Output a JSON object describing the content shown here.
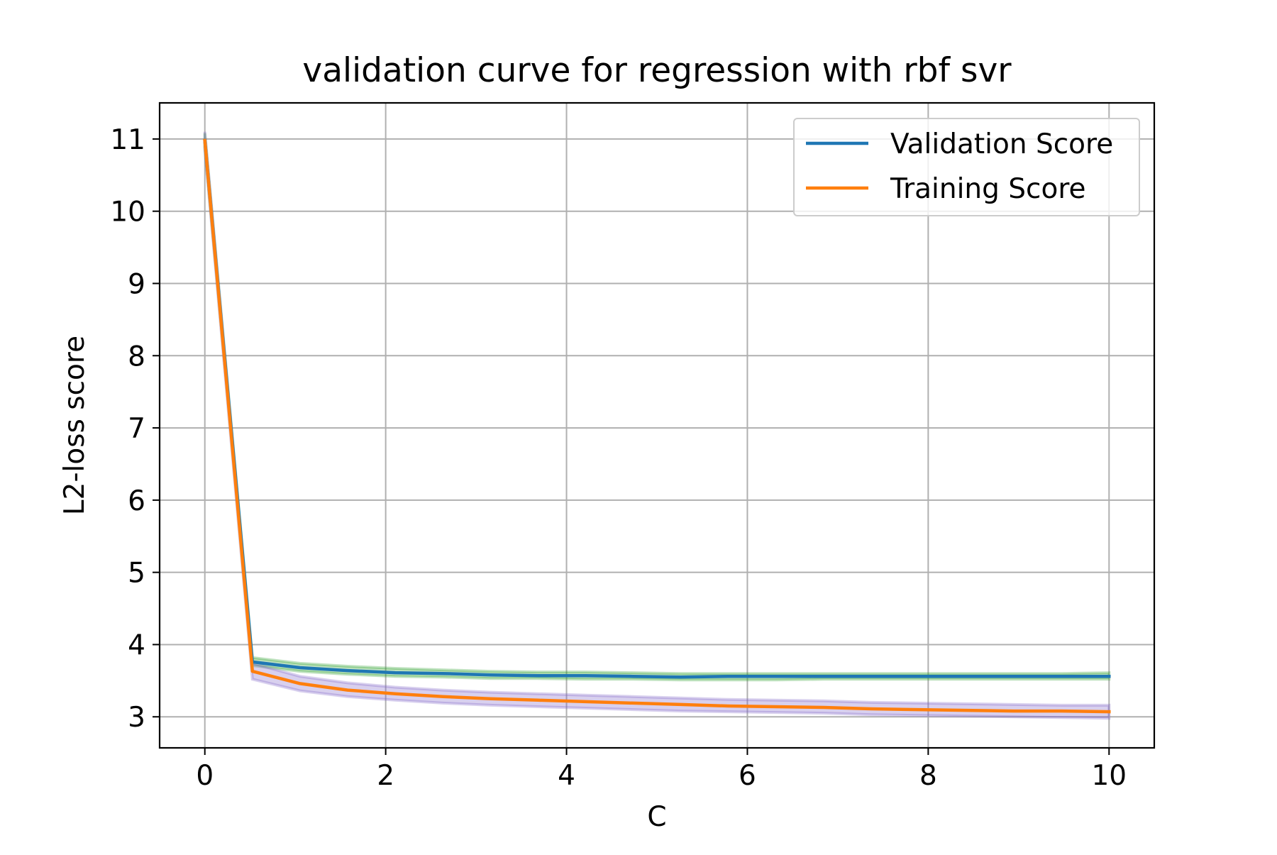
{
  "chart_data": {
    "type": "line",
    "title": "validation curve for regression with rbf svr",
    "xlabel": "C",
    "ylabel": "L2-loss score",
    "xlim": [
      -0.5,
      10.5
    ],
    "ylim": [
      2.57,
      11.5
    ],
    "xticks": [
      0,
      2,
      4,
      6,
      8,
      10
    ],
    "yticks": [
      3,
      4,
      5,
      6,
      7,
      8,
      9,
      10,
      11
    ],
    "grid": true,
    "legend_position": "upper right",
    "x": [
      0.0,
      0.526,
      1.053,
      1.579,
      2.105,
      2.632,
      3.158,
      3.684,
      4.211,
      4.737,
      5.263,
      5.789,
      6.316,
      6.842,
      7.368,
      7.895,
      8.421,
      8.947,
      9.474,
      10.0
    ],
    "series": [
      {
        "name": "Validation Score",
        "color": "#1f77b4",
        "band_color": "#2ca02c",
        "values": [
          10.98,
          3.76,
          3.68,
          3.64,
          3.61,
          3.6,
          3.58,
          3.57,
          3.57,
          3.56,
          3.55,
          3.56,
          3.56,
          3.56,
          3.56,
          3.56,
          3.56,
          3.56,
          3.56,
          3.56
        ],
        "band_lower": [
          10.88,
          3.71,
          3.63,
          3.59,
          3.56,
          3.55,
          3.53,
          3.53,
          3.52,
          3.52,
          3.51,
          3.51,
          3.51,
          3.52,
          3.52,
          3.52,
          3.52,
          3.52,
          3.52,
          3.52
        ],
        "band_upper": [
          11.08,
          3.82,
          3.74,
          3.7,
          3.67,
          3.65,
          3.63,
          3.62,
          3.62,
          3.61,
          3.6,
          3.6,
          3.6,
          3.6,
          3.6,
          3.6,
          3.6,
          3.6,
          3.6,
          3.61
        ]
      },
      {
        "name": "Training Score",
        "color": "#ff7f0e",
        "band_color": "#7f64c8",
        "values": [
          10.98,
          3.63,
          3.46,
          3.37,
          3.32,
          3.28,
          3.25,
          3.23,
          3.21,
          3.19,
          3.17,
          3.15,
          3.14,
          3.13,
          3.11,
          3.1,
          3.09,
          3.08,
          3.08,
          3.07
        ],
        "band_lower": [
          10.86,
          3.52,
          3.36,
          3.28,
          3.23,
          3.19,
          3.16,
          3.14,
          3.12,
          3.1,
          3.08,
          3.07,
          3.06,
          3.05,
          3.03,
          3.02,
          3.01,
          3.0,
          2.99,
          2.98
        ],
        "band_upper": [
          11.1,
          3.74,
          3.56,
          3.47,
          3.41,
          3.37,
          3.34,
          3.32,
          3.3,
          3.28,
          3.26,
          3.24,
          3.23,
          3.22,
          3.2,
          3.19,
          3.18,
          3.17,
          3.16,
          3.16
        ]
      }
    ]
  }
}
